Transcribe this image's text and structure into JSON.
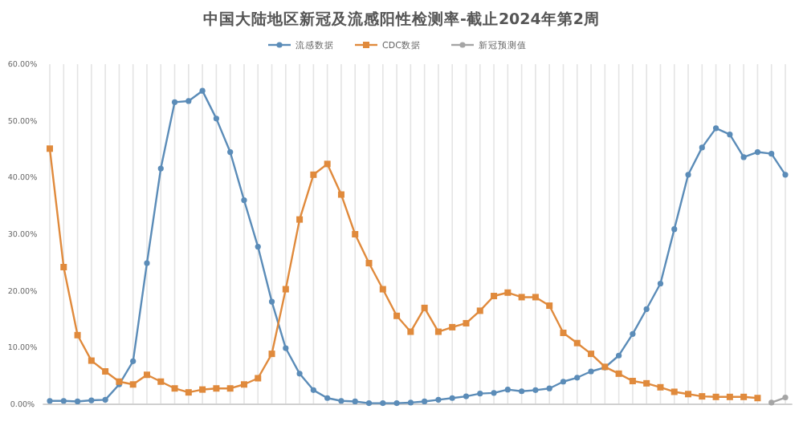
{
  "chart_data": {
    "type": "line",
    "title": "中国大陆地区新冠及流感阳性检测率-截止2024年第2周",
    "categories": [
      null,
      null,
      null,
      null,
      null,
      null,
      null,
      null,
      null,
      null,
      null,
      null,
      null,
      null,
      null,
      null,
      null,
      null,
      null,
      null,
      null,
      null,
      null,
      null,
      null,
      null,
      null,
      null,
      null,
      null,
      null,
      null,
      null,
      null,
      null,
      null,
      null,
      null,
      null,
      null,
      null,
      null,
      null,
      null,
      null,
      null,
      null,
      null,
      null,
      null,
      null,
      null,
      null,
      null
    ],
    "series": [
      {
        "name": "流感数据",
        "color": "#5b8cb8",
        "marker": "circle",
        "values": [
          0.6,
          0.6,
          0.5,
          0.7,
          0.8,
          3.5,
          7.6,
          24.9,
          41.6,
          53.3,
          53.5,
          55.3,
          50.4,
          44.5,
          36,
          27.8,
          18.1,
          9.9,
          5.4,
          2.5,
          1.1,
          0.6,
          0.5,
          0.2,
          0.2,
          0.2,
          0.3,
          0.5,
          0.8,
          1.1,
          1.4,
          1.9,
          2.0,
          2.6,
          2.3,
          2.5,
          2.8,
          4.0,
          4.7,
          5.8,
          6.5,
          8.6,
          12.4,
          16.8,
          21.3,
          30.9,
          40.5,
          45.3,
          48.7,
          47.6,
          43.6,
          44.5,
          44.2,
          40.5
        ]
      },
      {
        "name": "CDC数据",
        "color": "#e08a3c",
        "marker": "square",
        "values": [
          45.1,
          24.2,
          12.2,
          7.7,
          5.8,
          4.0,
          3.5,
          5.2,
          4.0,
          2.8,
          2.1,
          2.6,
          2.8,
          2.8,
          3.5,
          4.6,
          8.9,
          20.3,
          32.6,
          40.5,
          42.4,
          37,
          30,
          24.9,
          20.3,
          15.6,
          12.8,
          17.0,
          12.8,
          13.6,
          14.3,
          16.5,
          19.1,
          19.7,
          18.9,
          18.9,
          17.4,
          12.6,
          10.8,
          8.9,
          6.6,
          5.4,
          4.1,
          3.7,
          3.0,
          2.2,
          1.8,
          1.4,
          1.3,
          1.3,
          1.3,
          1.1,
          null,
          null
        ]
      },
      {
        "name": "新冠预测值",
        "color": "#a5a5a5",
        "marker": "circle",
        "values": [
          null,
          null,
          null,
          null,
          null,
          null,
          null,
          null,
          null,
          null,
          null,
          null,
          null,
          null,
          null,
          null,
          null,
          null,
          null,
          null,
          null,
          null,
          null,
          null,
          null,
          null,
          null,
          null,
          null,
          null,
          null,
          null,
          null,
          null,
          null,
          null,
          null,
          null,
          null,
          null,
          null,
          null,
          null,
          null,
          null,
          null,
          null,
          null,
          null,
          null,
          null,
          null,
          0.3,
          1.2
        ]
      }
    ],
    "ylim": [
      0,
      60
    ],
    "yticks": [
      {
        "value": 0,
        "label": "0.00%"
      },
      {
        "value": 10,
        "label": "10.00%"
      },
      {
        "value": 20,
        "label": "20.00%"
      },
      {
        "value": 30,
        "label": "30.00%"
      },
      {
        "value": 40,
        "label": "40.00%"
      },
      {
        "value": 50,
        "label": "50.00%"
      },
      {
        "value": 60,
        "label": "60.00%"
      }
    ],
    "grid": "x",
    "legend": "top"
  }
}
